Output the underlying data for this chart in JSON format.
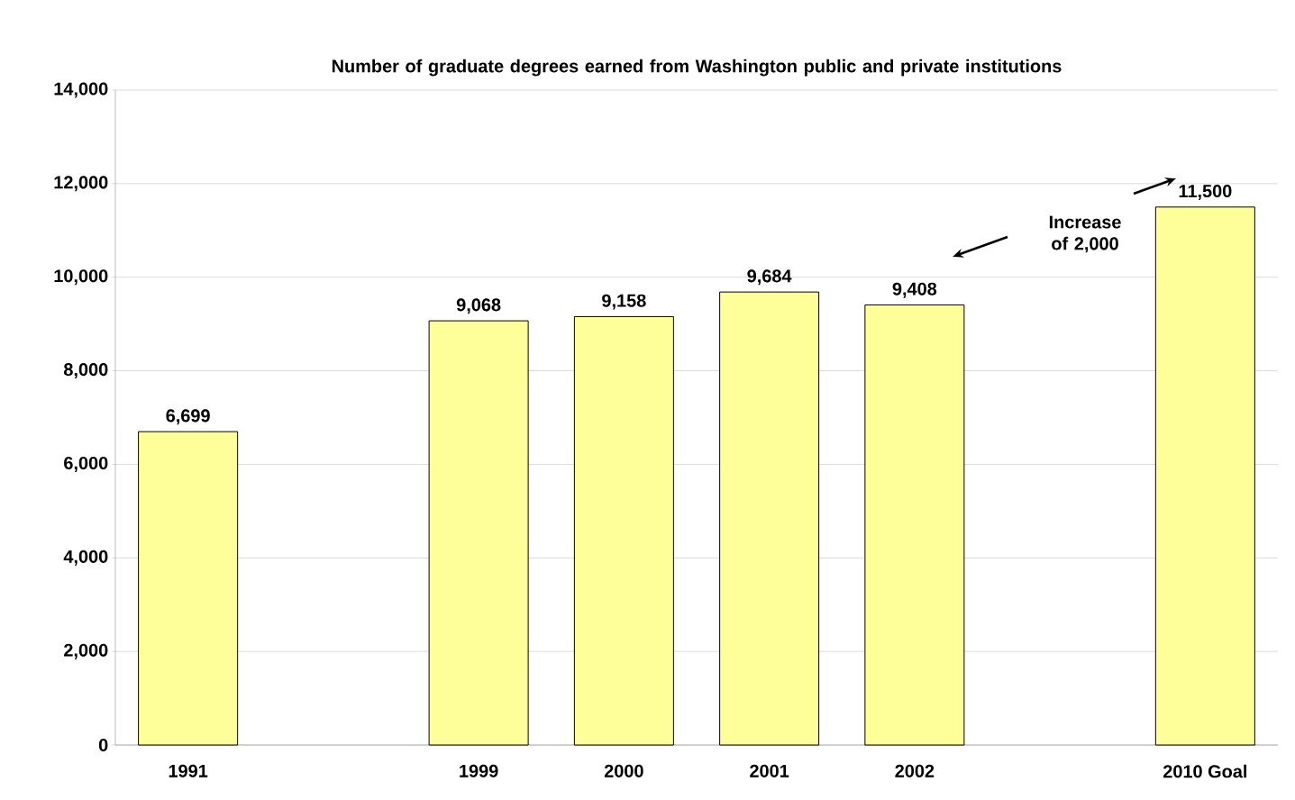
{
  "chart_data": {
    "type": "bar",
    "title": "Number of graduate degrees earned from Washington public and private institutions",
    "categories": [
      "1991",
      null,
      "1999",
      "2000",
      "2001",
      "2002",
      null,
      "2010 Goal"
    ],
    "values": [
      6699,
      null,
      9068,
      9158,
      9684,
      9408,
      null,
      11500
    ],
    "value_labels": [
      "6,699",
      null,
      "9,068",
      "9,158",
      "9,684",
      "9,408",
      null,
      "11,500"
    ],
    "color": "#ffff99",
    "grid": "y",
    "ylim": [
      0,
      14000
    ],
    "yticks": [
      {
        "value": 0,
        "label": "0"
      },
      {
        "value": 2000,
        "label": "2,000"
      },
      {
        "value": 4000,
        "label": "4,000"
      },
      {
        "value": 6000,
        "label": "6,000"
      },
      {
        "value": 8000,
        "label": "8,000"
      },
      {
        "value": 10000,
        "label": "10,000"
      },
      {
        "value": 12000,
        "label": "12,000"
      },
      {
        "value": 14000,
        "label": "14,000"
      }
    ],
    "annotations": [
      "Increase of 2,000"
    ]
  }
}
